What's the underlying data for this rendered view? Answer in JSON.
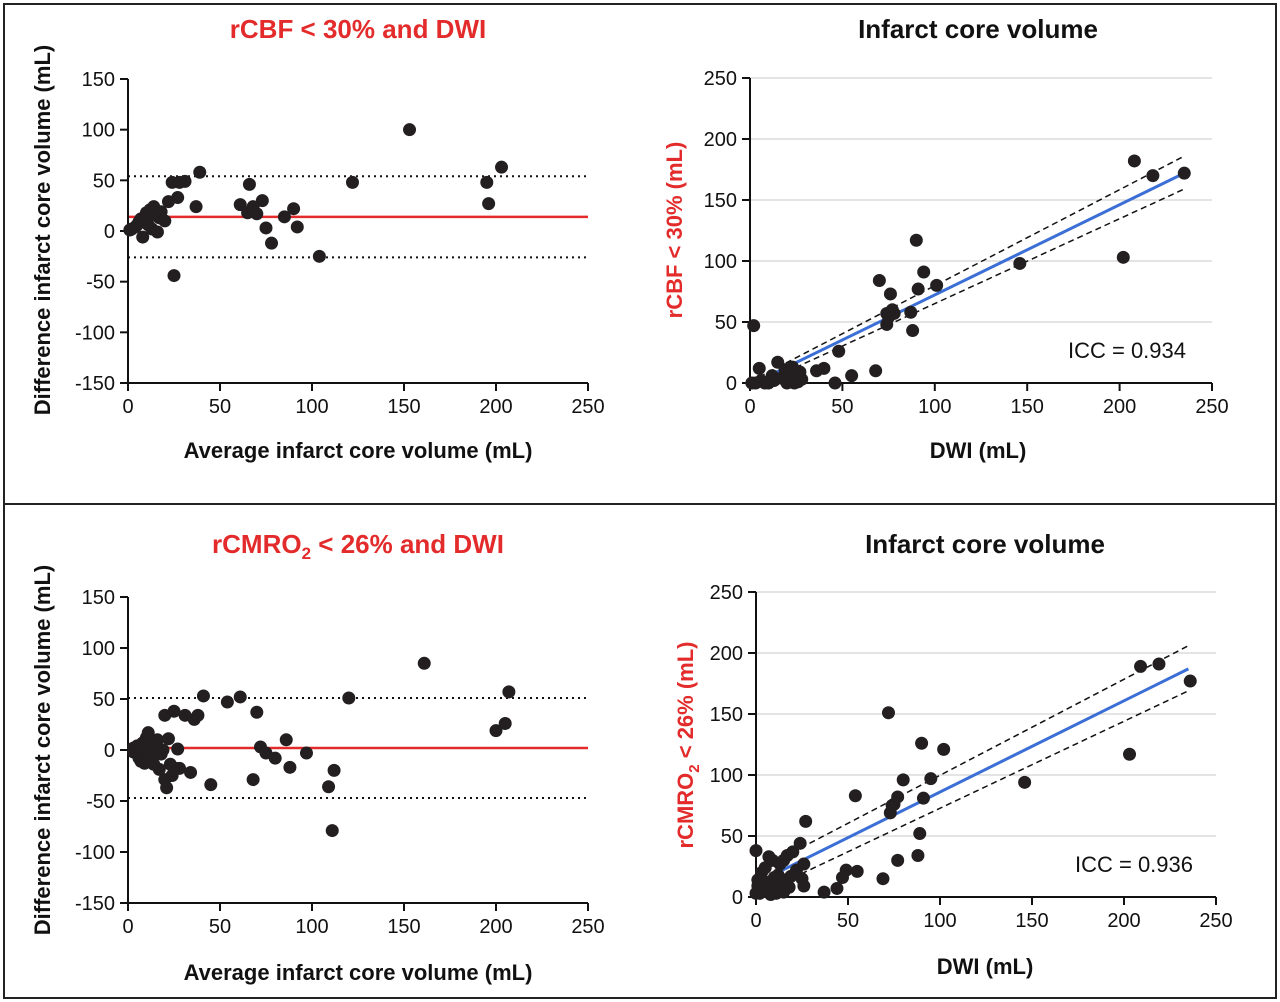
{
  "colors": {
    "red": "#e32b2b",
    "blue": "#3b6fd6",
    "point": "#231f20",
    "grid": "#c8c8c8",
    "frame": "#222222"
  },
  "chart_data": [
    {
      "type": "scatter",
      "kind": "bland-altman",
      "title": "rCBF < 30% and DWI",
      "title_color": "red",
      "xlabel": "Average infarct core volume (mL)",
      "ylabel": "Difference infarct core volume (mL)",
      "xlim": [
        0,
        250
      ],
      "ylim": [
        -150,
        150
      ],
      "xticks": [
        0,
        50,
        100,
        150,
        200,
        250
      ],
      "yticks": [
        -150,
        -100,
        -50,
        0,
        50,
        100,
        150
      ],
      "mean_line": 14,
      "limits_of_agreement": [
        -26,
        54
      ],
      "points": [
        [
          1,
          1
        ],
        [
          2,
          2
        ],
        [
          4,
          4
        ],
        [
          5,
          6
        ],
        [
          6,
          9
        ],
        [
          7,
          12
        ],
        [
          8,
          -6
        ],
        [
          9,
          14
        ],
        [
          10,
          18
        ],
        [
          11,
          6
        ],
        [
          12,
          21
        ],
        [
          13,
          2
        ],
        [
          14,
          24
        ],
        [
          15,
          16
        ],
        [
          16,
          -1
        ],
        [
          17,
          13
        ],
        [
          18,
          19
        ],
        [
          20,
          10
        ],
        [
          22,
          29
        ],
        [
          24,
          48
        ],
        [
          25,
          -44
        ],
        [
          27,
          33
        ],
        [
          28,
          48
        ],
        [
          31,
          49
        ],
        [
          37,
          24
        ],
        [
          39,
          58
        ],
        [
          61,
          26
        ],
        [
          65,
          18
        ],
        [
          66,
          46
        ],
        [
          68,
          24
        ],
        [
          70,
          17
        ],
        [
          73,
          30
        ],
        [
          75,
          3
        ],
        [
          78,
          -12
        ],
        [
          85,
          14
        ],
        [
          90,
          22
        ],
        [
          92,
          4
        ],
        [
          104,
          -25
        ],
        [
          122,
          48
        ],
        [
          153,
          100
        ],
        [
          195,
          48
        ],
        [
          196,
          27
        ],
        [
          203,
          63
        ]
      ]
    },
    {
      "type": "scatter",
      "kind": "correlation",
      "title": "Infarct core volume",
      "xlabel": "DWI (mL)",
      "ylabel": "rCBF < 30% (mL)",
      "xlim": [
        0,
        250
      ],
      "ylim": [
        0,
        250
      ],
      "xticks": [
        0,
        50,
        100,
        150,
        200,
        250
      ],
      "yticks": [
        0,
        50,
        100,
        150,
        200,
        250
      ],
      "annotation": "ICC = 0.934",
      "fit_line": [
        [
          5,
          2
        ],
        [
          235,
          172
        ]
      ],
      "ci_upper": [
        [
          5,
          5
        ],
        [
          235,
          186
        ]
      ],
      "ci_lower": [
        [
          5,
          -1
        ],
        [
          235,
          159
        ]
      ],
      "points": [
        [
          1,
          0
        ],
        [
          2,
          47
        ],
        [
          3,
          0
        ],
        [
          5,
          12
        ],
        [
          6,
          2
        ],
        [
          8,
          0
        ],
        [
          10,
          0
        ],
        [
          12,
          6
        ],
        [
          13,
          2
        ],
        [
          15,
          17
        ],
        [
          17,
          4
        ],
        [
          19,
          11
        ],
        [
          20,
          0
        ],
        [
          21,
          7
        ],
        [
          23,
          13
        ],
        [
          24,
          0
        ],
        [
          26,
          1
        ],
        [
          27,
          9
        ],
        [
          28,
          3
        ],
        [
          36,
          10
        ],
        [
          40,
          12
        ],
        [
          46,
          0
        ],
        [
          48,
          26
        ],
        [
          55,
          6
        ],
        [
          68,
          10
        ],
        [
          70,
          84
        ],
        [
          74,
          57
        ],
        [
          74,
          48
        ],
        [
          75,
          54
        ],
        [
          76,
          73
        ],
        [
          77,
          60
        ],
        [
          78,
          57
        ],
        [
          87,
          58
        ],
        [
          88,
          43
        ],
        [
          90,
          117
        ],
        [
          91,
          77
        ],
        [
          94,
          91
        ],
        [
          101,
          80
        ],
        [
          146,
          98
        ],
        [
          202,
          103
        ],
        [
          208,
          182
        ],
        [
          218,
          170
        ],
        [
          235,
          172
        ]
      ]
    },
    {
      "type": "scatter",
      "kind": "bland-altman",
      "title_prefix": "rCMRO",
      "title_sub": "2",
      "title_suffix": " < 26% and DWI",
      "title_color": "red",
      "xlabel": "Average infarct core volume (mL)",
      "ylabel": "Difference infarct core volume (mL)",
      "xlim": [
        0,
        250
      ],
      "ylim": [
        -150,
        150
      ],
      "xticks": [
        0,
        50,
        100,
        150,
        200,
        250
      ],
      "yticks": [
        -150,
        -100,
        -50,
        0,
        50,
        100,
        150
      ],
      "mean_line": 2,
      "limits_of_agreement": [
        -47,
        51
      ],
      "points": [
        [
          3,
          2
        ],
        [
          3,
          -2
        ],
        [
          4,
          1
        ],
        [
          5,
          -4
        ],
        [
          5,
          4
        ],
        [
          6,
          0
        ],
        [
          6,
          -8
        ],
        [
          7,
          3
        ],
        [
          7,
          -11
        ],
        [
          8,
          7
        ],
        [
          8,
          -1
        ],
        [
          9,
          -5
        ],
        [
          9,
          -13
        ],
        [
          10,
          12
        ],
        [
          10,
          2
        ],
        [
          11,
          -6
        ],
        [
          11,
          17
        ],
        [
          12,
          -2
        ],
        [
          12,
          8
        ],
        [
          13,
          -9
        ],
        [
          14,
          4
        ],
        [
          14,
          -14
        ],
        [
          15,
          -1
        ],
        [
          16,
          10
        ],
        [
          17,
          -19
        ],
        [
          18,
          -4
        ],
        [
          19,
          0
        ],
        [
          20,
          34
        ],
        [
          20,
          -29
        ],
        [
          21,
          -37
        ],
        [
          22,
          11
        ],
        [
          23,
          -14
        ],
        [
          24,
          -25
        ],
        [
          25,
          38
        ],
        [
          26,
          -18
        ],
        [
          27,
          1
        ],
        [
          28,
          -18
        ],
        [
          31,
          34
        ],
        [
          34,
          -22
        ],
        [
          36,
          30
        ],
        [
          38,
          34
        ],
        [
          41,
          53
        ],
        [
          45,
          -34
        ],
        [
          54,
          47
        ],
        [
          61,
          52
        ],
        [
          68,
          -29
        ],
        [
          70,
          37
        ],
        [
          72,
          3
        ],
        [
          75,
          -3
        ],
        [
          80,
          -8
        ],
        [
          86,
          10
        ],
        [
          88,
          -17
        ],
        [
          97,
          -3
        ],
        [
          109,
          -36
        ],
        [
          111,
          -79
        ],
        [
          112,
          -20
        ],
        [
          120,
          51
        ],
        [
          161,
          85
        ],
        [
          200,
          19
        ],
        [
          205,
          26
        ],
        [
          207,
          57
        ]
      ]
    },
    {
      "type": "scatter",
      "kind": "correlation",
      "title": "Infarct core volume",
      "xlabel": "DWI (mL)",
      "ylabel_prefix": "rCMRO",
      "ylabel_sub": "2",
      "ylabel_suffix": " < 26% (mL)",
      "xlim": [
        0,
        250
      ],
      "ylim": [
        0,
        250
      ],
      "xticks": [
        0,
        50,
        100,
        150,
        200,
        250
      ],
      "yticks": [
        0,
        50,
        100,
        150,
        200,
        250
      ],
      "annotation": "ICC = 0.936",
      "fit_line": [
        [
          5,
          15
        ],
        [
          235,
          187
        ]
      ],
      "ci_upper": [
        [
          5,
          25
        ],
        [
          235,
          206
        ]
      ],
      "ci_lower": [
        [
          5,
          5
        ],
        [
          235,
          169
        ]
      ],
      "points": [
        [
          0,
          3
        ],
        [
          0,
          38
        ],
        [
          1,
          14
        ],
        [
          1,
          9
        ],
        [
          2,
          7
        ],
        [
          2,
          3
        ],
        [
          3,
          20
        ],
        [
          4,
          12
        ],
        [
          5,
          5
        ],
        [
          5,
          24
        ],
        [
          6,
          6
        ],
        [
          7,
          12
        ],
        [
          7,
          33
        ],
        [
          8,
          2
        ],
        [
          9,
          30
        ],
        [
          9,
          9
        ],
        [
          10,
          16
        ],
        [
          11,
          3
        ],
        [
          12,
          18
        ],
        [
          12,
          7
        ],
        [
          13,
          27
        ],
        [
          14,
          11
        ],
        [
          15,
          30
        ],
        [
          15,
          4
        ],
        [
          16,
          14
        ],
        [
          17,
          34
        ],
        [
          18,
          8
        ],
        [
          19,
          17
        ],
        [
          20,
          37
        ],
        [
          22,
          22
        ],
        [
          24,
          44
        ],
        [
          25,
          15
        ],
        [
          26,
          9
        ],
        [
          26,
          27
        ],
        [
          27,
          62
        ],
        [
          37,
          4
        ],
        [
          44,
          7
        ],
        [
          47,
          16
        ],
        [
          49,
          22
        ],
        [
          54,
          83
        ],
        [
          55,
          21
        ],
        [
          69,
          15
        ],
        [
          72,
          151
        ],
        [
          73,
          69
        ],
        [
          74,
          75
        ],
        [
          75,
          76
        ],
        [
          77,
          82
        ],
        [
          77,
          30
        ],
        [
          80,
          96
        ],
        [
          88,
          34
        ],
        [
          89,
          52
        ],
        [
          90,
          126
        ],
        [
          91,
          81
        ],
        [
          95,
          97
        ],
        [
          102,
          121
        ],
        [
          146,
          94
        ],
        [
          203,
          117
        ],
        [
          209,
          189
        ],
        [
          219,
          191
        ],
        [
          236,
          177
        ]
      ]
    }
  ]
}
